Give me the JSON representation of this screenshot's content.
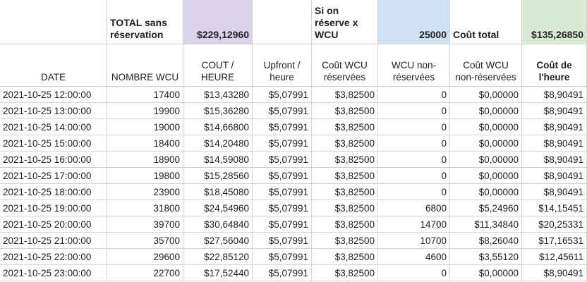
{
  "summary": {
    "total_label": "TOTAL sans réservation",
    "total_value": "$229,12960",
    "reserve_label": "Si on réserve x WCU",
    "reserve_value": "25000",
    "cost_total_label": "Coût total",
    "cost_total_value": "$135,26850"
  },
  "colors": {
    "purple": "#d9d2e9",
    "blue": "#cfe2f3",
    "green": "#d9ead3"
  },
  "headers": [
    "DATE",
    "NOMBRE WCU",
    "COUT / HEURE",
    "Upfront / heure",
    "Coût WCU réservées",
    "WCU non-réservées",
    "Coût WCU non-réservées",
    "Coût de l'heure"
  ],
  "rows": [
    [
      "2021-10-25 12:00:00",
      "17400",
      "$13,43280",
      "$5,07991",
      "$3,82500",
      "0",
      "$0,00000",
      "$8,90491"
    ],
    [
      "2021-10-25 13:00:00",
      "19900",
      "$15,36280",
      "$5,07991",
      "$3,82500",
      "0",
      "$0,00000",
      "$8,90491"
    ],
    [
      "2021-10-25 14:00:00",
      "19000",
      "$14,66800",
      "$5,07991",
      "$3,82500",
      "0",
      "$0,00000",
      "$8,90491"
    ],
    [
      "2021-10-25 15:00:00",
      "18400",
      "$14,20480",
      "$5,07991",
      "$3,82500",
      "0",
      "$0,00000",
      "$8,90491"
    ],
    [
      "2021-10-25 16:00:00",
      "18900",
      "$14,59080",
      "$5,07991",
      "$3,82500",
      "0",
      "$0,00000",
      "$8,90491"
    ],
    [
      "2021-10-25 17:00:00",
      "19800",
      "$15,28560",
      "$5,07991",
      "$3,82500",
      "0",
      "$0,00000",
      "$8,90491"
    ],
    [
      "2021-10-25 18:00:00",
      "23900",
      "$18,45080",
      "$5,07991",
      "$3,82500",
      "0",
      "$0,00000",
      "$8,90491"
    ],
    [
      "2021-10-25 19:00:00",
      "31800",
      "$24,54960",
      "$5,07991",
      "$3,82500",
      "6800",
      "$5,24960",
      "$14,15451"
    ],
    [
      "2021-10-25 20:00:00",
      "39700",
      "$30,64840",
      "$5,07991",
      "$3,82500",
      "14700",
      "$11,34840",
      "$20,25331"
    ],
    [
      "2021-10-25 21:00:00",
      "35700",
      "$27,56040",
      "$5,07991",
      "$3,82500",
      "10700",
      "$8,26040",
      "$17,16531"
    ],
    [
      "2021-10-25 22:00:00",
      "29600",
      "$22,85120",
      "$5,07991",
      "$3,82500",
      "4600",
      "$3,55120",
      "$12,45611"
    ],
    [
      "2021-10-25 23:00:00",
      "22700",
      "$17,52440",
      "$5,07991",
      "$3,82500",
      "0",
      "$0,00000",
      "$8,90491"
    ]
  ]
}
